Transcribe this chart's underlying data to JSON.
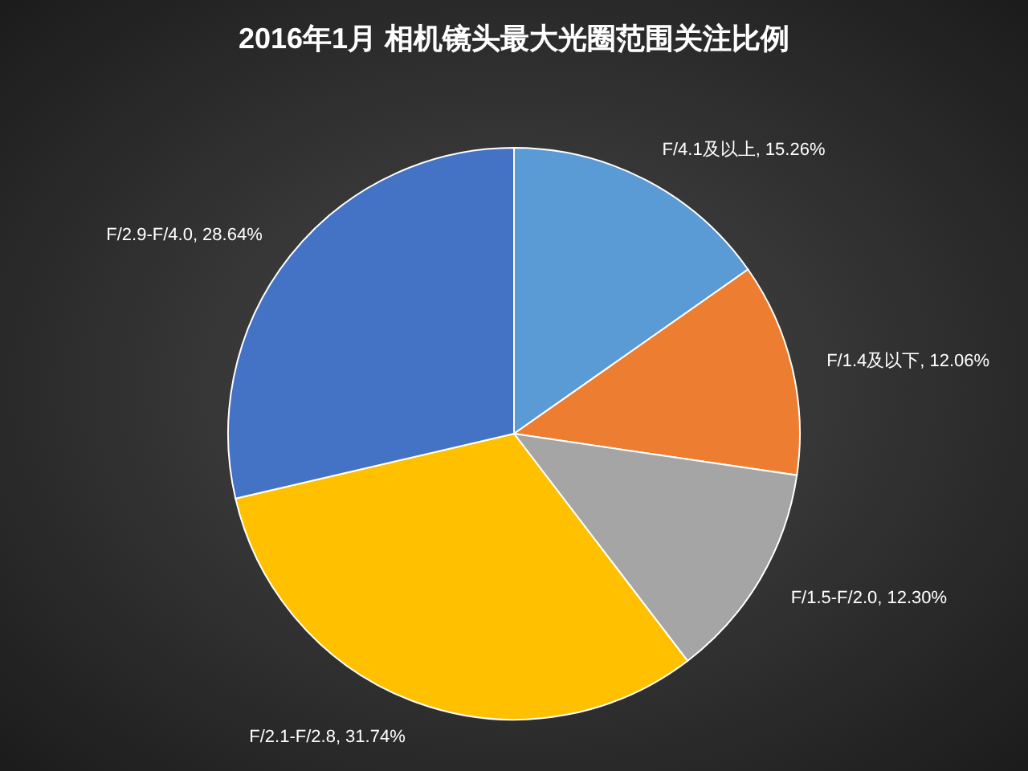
{
  "chart_data": {
    "type": "pie",
    "title": "2016年1月 相机镜头最大光圈范围关注比例",
    "categories": [
      "F/4.1及以上",
      "F/1.4及以下",
      "F/1.5-F/2.0",
      "F/2.1-F/2.8",
      "F/2.9-F/4.0"
    ],
    "values": [
      15.26,
      12.06,
      12.3,
      31.74,
      28.64
    ],
    "colors": [
      "#5b9bd5",
      "#ed7d31",
      "#a5a5a5",
      "#ffc000",
      "#4472c4"
    ],
    "value_labels": [
      "15.26%",
      "12.06%",
      "12.30%",
      "31.74%",
      "28.64%"
    ]
  }
}
